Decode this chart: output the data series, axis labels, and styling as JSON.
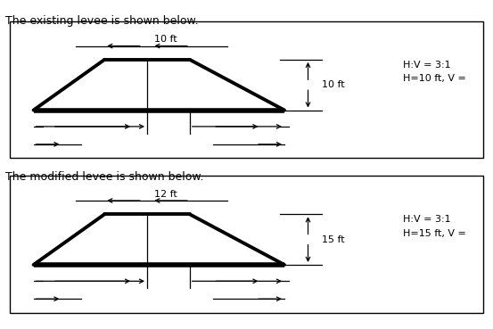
{
  "title1": "The existing levee is shown below.",
  "title2": "The modified levee is shown below.",
  "label1_top": "10 ft",
  "label1_height": "10 ft",
  "label1_ratio": "H:V = 3:1",
  "label1_eq": "H=10 ft, V =",
  "label2_top": "12 ft",
  "label2_height": "15 ft",
  "label2_ratio": "H:V = 3:1",
  "label2_eq": "H=15 ft, V =",
  "bg_color": "#ffffff",
  "line_color": "#000000",
  "text_color": "#000000",
  "fontsize_title": 9,
  "fontsize_label": 8,
  "fontsize_annot": 8
}
